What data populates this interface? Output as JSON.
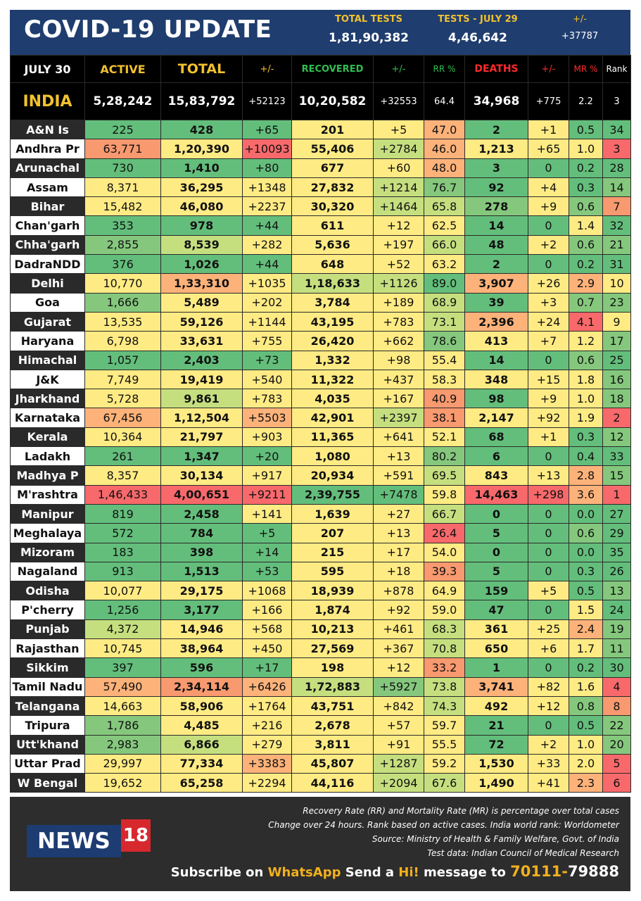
{
  "header": {
    "title": "COVID-19 UPDATE",
    "total_tests_label": "TOTAL TESTS",
    "total_tests_value": "1,81,90,382",
    "tests_day_label": "TESTS - JULY 29",
    "tests_day_value": "4,46,642",
    "change_label": "+/-",
    "change_value": "+37787"
  },
  "columns": {
    "date": "JULY 30",
    "active": "ACTIVE",
    "total": "TOTAL",
    "total_change": "+/-",
    "recovered": "RECOVERED",
    "recovered_change": "+/-",
    "rr": "RR %",
    "deaths": "DEATHS",
    "deaths_change": "+/-",
    "mr": "MR %",
    "rank": "Rank"
  },
  "india": {
    "name": "INDIA",
    "active": "5,28,242",
    "total": "15,83,792",
    "total_change": "+52123",
    "recovered": "10,20,582",
    "recovered_change": "+32553",
    "rr": "64.4",
    "deaths": "34,968",
    "deaths_change": "+775",
    "mr": "2.2",
    "rank": "3"
  },
  "colors": {
    "dark_green": "#63be7b",
    "green": "#85c87d",
    "light_green": "#c5df7f",
    "yellow": "#ffeb84",
    "orange": "#fdb27a",
    "salmon": "#f8996f",
    "red": "#f8696b",
    "header_blue": "#1f3d6e",
    "gold": "#f2c12e",
    "recovered_green": "#2fbf4f",
    "deaths_red": "#ff2b2b"
  },
  "states": [
    {
      "name": "A&N Is",
      "active": "225",
      "total": "428",
      "total_change": "+65",
      "recovered": "201",
      "recovered_change": "+5",
      "rr": "47.0",
      "deaths": "2",
      "deaths_change": "+1",
      "mr": "0.5",
      "rank": "34",
      "bg": [
        "#63be7b",
        "#63be7b",
        "#63be7b",
        "#ffeb84",
        "#ffeb84",
        "#fdb27a",
        "#63be7b",
        "#ffeb84",
        "#63be7b",
        "#63be7b"
      ]
    },
    {
      "name": "Andhra Pr",
      "active": "63,771",
      "total": "1,20,390",
      "total_change": "+10093",
      "recovered": "55,406",
      "recovered_change": "+2784",
      "rr": "46.0",
      "deaths": "1,213",
      "deaths_change": "+65",
      "mr": "1.0",
      "rank": "3",
      "bg": [
        "#f8996f",
        "#ffeb84",
        "#f8696b",
        "#ffeb84",
        "#c5df7f",
        "#fdb27a",
        "#ffeb84",
        "#ffeb84",
        "#ffeb84",
        "#f8696b"
      ]
    },
    {
      "name": "Arunachal",
      "active": "730",
      "total": "1,410",
      "total_change": "+80",
      "recovered": "677",
      "recovered_change": "+60",
      "rr": "48.0",
      "deaths": "3",
      "deaths_change": "0",
      "mr": "0.2",
      "rank": "28",
      "bg": [
        "#63be7b",
        "#63be7b",
        "#63be7b",
        "#ffeb84",
        "#ffeb84",
        "#fdb27a",
        "#63be7b",
        "#63be7b",
        "#63be7b",
        "#63be7b"
      ]
    },
    {
      "name": "Assam",
      "active": "8,371",
      "total": "36,295",
      "total_change": "+1348",
      "recovered": "27,832",
      "recovered_change": "+1214",
      "rr": "76.7",
      "deaths": "92",
      "deaths_change": "+4",
      "mr": "0.3",
      "rank": "14",
      "bg": [
        "#ffeb84",
        "#ffeb84",
        "#ffeb84",
        "#ffeb84",
        "#c5df7f",
        "#85c87d",
        "#63be7b",
        "#ffeb84",
        "#63be7b",
        "#85c87d"
      ]
    },
    {
      "name": "Bihar",
      "active": "15,482",
      "total": "46,080",
      "total_change": "+2237",
      "recovered": "30,320",
      "recovered_change": "+1464",
      "rr": "65.8",
      "deaths": "278",
      "deaths_change": "+9",
      "mr": "0.6",
      "rank": "7",
      "bg": [
        "#ffeb84",
        "#ffeb84",
        "#ffeb84",
        "#ffeb84",
        "#c5df7f",
        "#c5df7f",
        "#85c87d",
        "#ffeb84",
        "#85c87d",
        "#f8996f"
      ]
    },
    {
      "name": "Chan'garh",
      "active": "353",
      "total": "978",
      "total_change": "+44",
      "recovered": "611",
      "recovered_change": "+12",
      "rr": "62.5",
      "deaths": "14",
      "deaths_change": "0",
      "mr": "1.4",
      "rank": "32",
      "bg": [
        "#63be7b",
        "#63be7b",
        "#63be7b",
        "#ffeb84",
        "#ffeb84",
        "#ffeb84",
        "#63be7b",
        "#63be7b",
        "#ffeb84",
        "#63be7b"
      ]
    },
    {
      "name": "Chha'garh",
      "active": "2,855",
      "total": "8,539",
      "total_change": "+282",
      "recovered": "5,636",
      "recovered_change": "+197",
      "rr": "66.0",
      "deaths": "48",
      "deaths_change": "+2",
      "mr": "0.6",
      "rank": "21",
      "bg": [
        "#85c87d",
        "#c5df7f",
        "#ffeb84",
        "#ffeb84",
        "#ffeb84",
        "#c5df7f",
        "#63be7b",
        "#ffeb84",
        "#85c87d",
        "#85c87d"
      ]
    },
    {
      "name": "DadraNDD",
      "active": "376",
      "total": "1,026",
      "total_change": "+44",
      "recovered": "648",
      "recovered_change": "+52",
      "rr": "63.2",
      "deaths": "2",
      "deaths_change": "0",
      "mr": "0.2",
      "rank": "31",
      "bg": [
        "#63be7b",
        "#63be7b",
        "#63be7b",
        "#ffeb84",
        "#ffeb84",
        "#ffeb84",
        "#63be7b",
        "#63be7b",
        "#63be7b",
        "#63be7b"
      ]
    },
    {
      "name": "Delhi",
      "active": "10,770",
      "total": "1,33,310",
      "total_change": "+1035",
      "recovered": "1,18,633",
      "recovered_change": "+1126",
      "rr": "89.0",
      "deaths": "3,907",
      "deaths_change": "+26",
      "mr": "2.9",
      "rank": "10",
      "bg": [
        "#ffeb84",
        "#fdb27a",
        "#ffeb84",
        "#c5df7f",
        "#c5df7f",
        "#63be7b",
        "#fdb27a",
        "#ffeb84",
        "#fdb27a",
        "#ffeb84"
      ]
    },
    {
      "name": "Goa",
      "active": "1,666",
      "total": "5,489",
      "total_change": "+202",
      "recovered": "3,784",
      "recovered_change": "+189",
      "rr": "68.9",
      "deaths": "39",
      "deaths_change": "+3",
      "mr": "0.7",
      "rank": "23",
      "bg": [
        "#85c87d",
        "#ffeb84",
        "#ffeb84",
        "#ffeb84",
        "#ffeb84",
        "#c5df7f",
        "#63be7b",
        "#ffeb84",
        "#85c87d",
        "#85c87d"
      ]
    },
    {
      "name": "Gujarat",
      "active": "13,535",
      "total": "59,126",
      "total_change": "+1144",
      "recovered": "43,195",
      "recovered_change": "+783",
      "rr": "73.1",
      "deaths": "2,396",
      "deaths_change": "+24",
      "mr": "4.1",
      "rank": "9",
      "bg": [
        "#ffeb84",
        "#ffeb84",
        "#ffeb84",
        "#ffeb84",
        "#ffeb84",
        "#c5df7f",
        "#fdb27a",
        "#ffeb84",
        "#f8696b",
        "#ffeb84"
      ]
    },
    {
      "name": "Haryana",
      "active": "6,798",
      "total": "33,631",
      "total_change": "+755",
      "recovered": "26,420",
      "recovered_change": "+662",
      "rr": "78.6",
      "deaths": "413",
      "deaths_change": "+7",
      "mr": "1.2",
      "rank": "17",
      "bg": [
        "#ffeb84",
        "#ffeb84",
        "#ffeb84",
        "#ffeb84",
        "#ffeb84",
        "#85c87d",
        "#ffeb84",
        "#ffeb84",
        "#ffeb84",
        "#85c87d"
      ]
    },
    {
      "name": "Himachal",
      "active": "1,057",
      "total": "2,403",
      "total_change": "+73",
      "recovered": "1,332",
      "recovered_change": "+98",
      "rr": "55.4",
      "deaths": "14",
      "deaths_change": "0",
      "mr": "0.6",
      "rank": "25",
      "bg": [
        "#63be7b",
        "#63be7b",
        "#63be7b",
        "#ffeb84",
        "#ffeb84",
        "#ffeb84",
        "#63be7b",
        "#63be7b",
        "#85c87d",
        "#63be7b"
      ]
    },
    {
      "name": "J&K",
      "active": "7,749",
      "total": "19,419",
      "total_change": "+540",
      "recovered": "11,322",
      "recovered_change": "+437",
      "rr": "58.3",
      "deaths": "348",
      "deaths_change": "+15",
      "mr": "1.8",
      "rank": "16",
      "bg": [
        "#ffeb84",
        "#ffeb84",
        "#ffeb84",
        "#ffeb84",
        "#ffeb84",
        "#ffeb84",
        "#ffeb84",
        "#ffeb84",
        "#ffeb84",
        "#85c87d"
      ]
    },
    {
      "name": "Jharkhand",
      "active": "5,728",
      "total": "9,861",
      "total_change": "+783",
      "recovered": "4,035",
      "recovered_change": "+167",
      "rr": "40.9",
      "deaths": "98",
      "deaths_change": "+9",
      "mr": "1.0",
      "rank": "18",
      "bg": [
        "#ffeb84",
        "#c5df7f",
        "#ffeb84",
        "#ffeb84",
        "#ffeb84",
        "#f8996f",
        "#63be7b",
        "#ffeb84",
        "#ffeb84",
        "#85c87d"
      ]
    },
    {
      "name": "Karnataka",
      "active": "67,456",
      "total": "1,12,504",
      "total_change": "+5503",
      "recovered": "42,901",
      "recovered_change": "+2397",
      "rr": "38.1",
      "deaths": "2,147",
      "deaths_change": "+92",
      "mr": "1.9",
      "rank": "2",
      "bg": [
        "#fdb27a",
        "#ffeb84",
        "#fdb27a",
        "#ffeb84",
        "#c5df7f",
        "#f8996f",
        "#ffeb84",
        "#ffeb84",
        "#ffeb84",
        "#f8696b"
      ]
    },
    {
      "name": "Kerala",
      "active": "10,364",
      "total": "21,797",
      "total_change": "+903",
      "recovered": "11,365",
      "recovered_change": "+641",
      "rr": "52.1",
      "deaths": "68",
      "deaths_change": "+1",
      "mr": "0.3",
      "rank": "12",
      "bg": [
        "#ffeb84",
        "#ffeb84",
        "#ffeb84",
        "#ffeb84",
        "#ffeb84",
        "#ffeb84",
        "#63be7b",
        "#ffeb84",
        "#63be7b",
        "#85c87d"
      ]
    },
    {
      "name": "Ladakh",
      "active": "261",
      "total": "1,347",
      "total_change": "+20",
      "recovered": "1,080",
      "recovered_change": "+13",
      "rr": "80.2",
      "deaths": "6",
      "deaths_change": "0",
      "mr": "0.4",
      "rank": "33",
      "bg": [
        "#63be7b",
        "#63be7b",
        "#63be7b",
        "#ffeb84",
        "#ffeb84",
        "#85c87d",
        "#63be7b",
        "#63be7b",
        "#63be7b",
        "#63be7b"
      ]
    },
    {
      "name": "Madhya P",
      "active": "8,357",
      "total": "30,134",
      "total_change": "+917",
      "recovered": "20,934",
      "recovered_change": "+591",
      "rr": "69.5",
      "deaths": "843",
      "deaths_change": "+13",
      "mr": "2.8",
      "rank": "15",
      "bg": [
        "#ffeb84",
        "#ffeb84",
        "#ffeb84",
        "#ffeb84",
        "#ffeb84",
        "#c5df7f",
        "#ffeb84",
        "#ffeb84",
        "#fdb27a",
        "#85c87d"
      ]
    },
    {
      "name": "M'rashtra",
      "active": "1,46,433",
      "total": "4,00,651",
      "total_change": "+9211",
      "recovered": "2,39,755",
      "recovered_change": "+7478",
      "rr": "59.8",
      "deaths": "14,463",
      "deaths_change": "+298",
      "mr": "3.6",
      "rank": "1",
      "bg": [
        "#f8696b",
        "#f8696b",
        "#f8696b",
        "#63be7b",
        "#63be7b",
        "#ffeb84",
        "#f8696b",
        "#f8696b",
        "#fdb27a",
        "#f8696b"
      ]
    },
    {
      "name": "Manipur",
      "active": "819",
      "total": "2,458",
      "total_change": "+141",
      "recovered": "1,639",
      "recovered_change": "+27",
      "rr": "66.7",
      "deaths": "0",
      "deaths_change": "0",
      "mr": "0.0",
      "rank": "27",
      "bg": [
        "#63be7b",
        "#63be7b",
        "#ffeb84",
        "#ffeb84",
        "#ffeb84",
        "#c5df7f",
        "#63be7b",
        "#63be7b",
        "#63be7b",
        "#63be7b"
      ]
    },
    {
      "name": "Meghalaya",
      "active": "572",
      "total": "784",
      "total_change": "+5",
      "recovered": "207",
      "recovered_change": "+13",
      "rr": "26.4",
      "deaths": "5",
      "deaths_change": "0",
      "mr": "0.6",
      "rank": "29",
      "bg": [
        "#63be7b",
        "#63be7b",
        "#63be7b",
        "#ffeb84",
        "#ffeb84",
        "#f8696b",
        "#63be7b",
        "#63be7b",
        "#85c87d",
        "#63be7b"
      ]
    },
    {
      "name": "Mizoram",
      "active": "183",
      "total": "398",
      "total_change": "+14",
      "recovered": "215",
      "recovered_change": "+17",
      "rr": "54.0",
      "deaths": "0",
      "deaths_change": "0",
      "mr": "0.0",
      "rank": "35",
      "bg": [
        "#63be7b",
        "#63be7b",
        "#63be7b",
        "#ffeb84",
        "#ffeb84",
        "#ffeb84",
        "#63be7b",
        "#63be7b",
        "#63be7b",
        "#63be7b"
      ]
    },
    {
      "name": "Nagaland",
      "active": "913",
      "total": "1,513",
      "total_change": "+53",
      "recovered": "595",
      "recovered_change": "+18",
      "rr": "39.3",
      "deaths": "5",
      "deaths_change": "0",
      "mr": "0.3",
      "rank": "26",
      "bg": [
        "#63be7b",
        "#63be7b",
        "#63be7b",
        "#ffeb84",
        "#ffeb84",
        "#f8996f",
        "#63be7b",
        "#63be7b",
        "#63be7b",
        "#63be7b"
      ]
    },
    {
      "name": "Odisha",
      "active": "10,077",
      "total": "29,175",
      "total_change": "+1068",
      "recovered": "18,939",
      "recovered_change": "+878",
      "rr": "64.9",
      "deaths": "159",
      "deaths_change": "+5",
      "mr": "0.5",
      "rank": "13",
      "bg": [
        "#ffeb84",
        "#ffeb84",
        "#ffeb84",
        "#ffeb84",
        "#ffeb84",
        "#ffeb84",
        "#63be7b",
        "#ffeb84",
        "#63be7b",
        "#85c87d"
      ]
    },
    {
      "name": "P'cherry",
      "active": "1,256",
      "total": "3,177",
      "total_change": "+166",
      "recovered": "1,874",
      "recovered_change": "+92",
      "rr": "59.0",
      "deaths": "47",
      "deaths_change": "0",
      "mr": "1.5",
      "rank": "24",
      "bg": [
        "#63be7b",
        "#63be7b",
        "#ffeb84",
        "#ffeb84",
        "#ffeb84",
        "#ffeb84",
        "#63be7b",
        "#63be7b",
        "#ffeb84",
        "#63be7b"
      ]
    },
    {
      "name": "Punjab",
      "active": "4,372",
      "total": "14,946",
      "total_change": "+568",
      "recovered": "10,213",
      "recovered_change": "+461",
      "rr": "68.3",
      "deaths": "361",
      "deaths_change": "+25",
      "mr": "2.4",
      "rank": "19",
      "bg": [
        "#c5df7f",
        "#ffeb84",
        "#ffeb84",
        "#ffeb84",
        "#ffeb84",
        "#c5df7f",
        "#ffeb84",
        "#ffeb84",
        "#fdb27a",
        "#85c87d"
      ]
    },
    {
      "name": "Rajasthan",
      "active": "10,745",
      "total": "38,964",
      "total_change": "+450",
      "recovered": "27,569",
      "recovered_change": "+367",
      "rr": "70.8",
      "deaths": "650",
      "deaths_change": "+6",
      "mr": "1.7",
      "rank": "11",
      "bg": [
        "#ffeb84",
        "#ffeb84",
        "#ffeb84",
        "#ffeb84",
        "#ffeb84",
        "#c5df7f",
        "#ffeb84",
        "#ffeb84",
        "#ffeb84",
        "#85c87d"
      ]
    },
    {
      "name": "Sikkim",
      "active": "397",
      "total": "596",
      "total_change": "+17",
      "recovered": "198",
      "recovered_change": "+12",
      "rr": "33.2",
      "deaths": "1",
      "deaths_change": "0",
      "mr": "0.2",
      "rank": "30",
      "bg": [
        "#63be7b",
        "#63be7b",
        "#63be7b",
        "#ffeb84",
        "#ffeb84",
        "#f8996f",
        "#63be7b",
        "#63be7b",
        "#63be7b",
        "#63be7b"
      ]
    },
    {
      "name": "Tamil Nadu",
      "active": "57,490",
      "total": "2,34,114",
      "total_change": "+6426",
      "recovered": "1,72,883",
      "recovered_change": "+5927",
      "rr": "73.8",
      "deaths": "3,741",
      "deaths_change": "+82",
      "mr": "1.6",
      "rank": "4",
      "bg": [
        "#fdb27a",
        "#f8996f",
        "#fdb27a",
        "#c5df7f",
        "#85c87d",
        "#c5df7f",
        "#fdb27a",
        "#ffeb84",
        "#ffeb84",
        "#f8696b"
      ]
    },
    {
      "name": "Telangana",
      "active": "14,663",
      "total": "58,906",
      "total_change": "+1764",
      "recovered": "43,751",
      "recovered_change": "+842",
      "rr": "74.3",
      "deaths": "492",
      "deaths_change": "+12",
      "mr": "0.8",
      "rank": "8",
      "bg": [
        "#ffeb84",
        "#ffeb84",
        "#ffeb84",
        "#ffeb84",
        "#ffeb84",
        "#c5df7f",
        "#ffeb84",
        "#ffeb84",
        "#85c87d",
        "#f8996f"
      ]
    },
    {
      "name": "Tripura",
      "active": "1,786",
      "total": "4,485",
      "total_change": "+216",
      "recovered": "2,678",
      "recovered_change": "+57",
      "rr": "59.7",
      "deaths": "21",
      "deaths_change": "0",
      "mr": "0.5",
      "rank": "22",
      "bg": [
        "#85c87d",
        "#ffeb84",
        "#ffeb84",
        "#ffeb84",
        "#ffeb84",
        "#ffeb84",
        "#63be7b",
        "#63be7b",
        "#63be7b",
        "#85c87d"
      ]
    },
    {
      "name": "Utt'khand",
      "active": "2,983",
      "total": "6,866",
      "total_change": "+279",
      "recovered": "3,811",
      "recovered_change": "+91",
      "rr": "55.5",
      "deaths": "72",
      "deaths_change": "+2",
      "mr": "1.0",
      "rank": "20",
      "bg": [
        "#85c87d",
        "#c5df7f",
        "#ffeb84",
        "#ffeb84",
        "#ffeb84",
        "#ffeb84",
        "#63be7b",
        "#ffeb84",
        "#ffeb84",
        "#85c87d"
      ]
    },
    {
      "name": "Uttar Prad",
      "active": "29,997",
      "total": "77,334",
      "total_change": "+3383",
      "recovered": "45,807",
      "recovered_change": "+1287",
      "rr": "59.2",
      "deaths": "1,530",
      "deaths_change": "+33",
      "mr": "2.0",
      "rank": "5",
      "bg": [
        "#ffeb84",
        "#ffeb84",
        "#fdb27a",
        "#ffeb84",
        "#c5df7f",
        "#ffeb84",
        "#ffeb84",
        "#ffeb84",
        "#ffeb84",
        "#f8696b"
      ]
    },
    {
      "name": "W Bengal",
      "active": "19,652",
      "total": "65,258",
      "total_change": "+2294",
      "recovered": "44,116",
      "recovered_change": "+2094",
      "rr": "67.6",
      "deaths": "1,490",
      "deaths_change": "+41",
      "mr": "2.3",
      "rank": "6",
      "bg": [
        "#ffeb84",
        "#ffeb84",
        "#ffeb84",
        "#ffeb84",
        "#c5df7f",
        "#c5df7f",
        "#ffeb84",
        "#ffeb84",
        "#fdb27a",
        "#f8696b"
      ]
    }
  ],
  "footer": {
    "notes": [
      "Recovery Rate (RR) and Mortality Rate (MR) is percentage over total cases",
      "Change over 24 hours. Rank based on active cases. India world rank: Worldometer",
      "Source: Ministry of Health & Family Welfare, Govt. of India",
      "Test data: Indian Council of Medical Research"
    ],
    "logo_text": "NEWS",
    "logo_number": "18",
    "subscribe": {
      "p1": "Subscribe on ",
      "whatsapp": "WhatsApp",
      "p2": " Send a ",
      "hi": "Hi!",
      "p3": " message to ",
      "num1": "70111-",
      "num2": "79888"
    }
  }
}
